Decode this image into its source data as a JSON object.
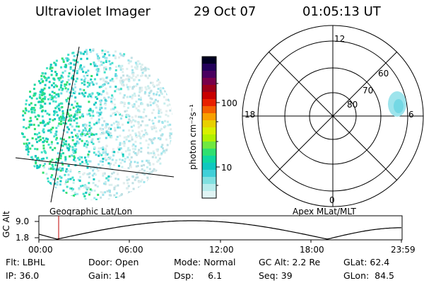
{
  "header": {
    "instrument": "Ultraviolet Imager",
    "date": "29 Oct 07",
    "time": "01:05:13 UT"
  },
  "left_panel": {
    "label": "Geographic Lat/Lon"
  },
  "colorbar": {
    "unit_label": "photon cm⁻²s⁻¹",
    "ticks": [
      "100",
      "10"
    ],
    "colors": [
      "#000022",
      "#22005a",
      "#4a0060",
      "#78004a",
      "#9c001a",
      "#c80000",
      "#e82000",
      "#f46000",
      "#f8a000",
      "#e8d000",
      "#d8f000",
      "#b0f000",
      "#70e840",
      "#30e070",
      "#10d8a0",
      "#10c8c0",
      "#40d0d8",
      "#80e0e0",
      "#b8ecec",
      "#e0f4f4"
    ]
  },
  "right_panel": {
    "label": "Apex MLat/MLT",
    "mlt_labels": [
      "12",
      "18",
      "6",
      "0"
    ],
    "lat_labels": [
      "60",
      "70",
      "80"
    ]
  },
  "orbit_plot": {
    "ylabel": "GC Alt",
    "y_ticks": [
      "9.0",
      "1.8"
    ],
    "x_ticks": [
      "00:00",
      "06:00",
      "12:00",
      "18:00",
      "23:59"
    ],
    "marker_color": "#c00000",
    "line_color": "#000000"
  },
  "info": {
    "row1": {
      "flt": "Flt: LBHL",
      "door": "Door: Open",
      "mode": "Mode: Normal",
      "gc_alt": "GC Alt: 2.2 Re",
      "glat": "GLat:  62.4"
    },
    "row2": {
      "ip": "IP: 36.0",
      "gain": "Gain: 14",
      "dsp": "Dsp:     6.1",
      "seq": "Seq: 39",
      "glon": "GLon:  84.5"
    }
  }
}
